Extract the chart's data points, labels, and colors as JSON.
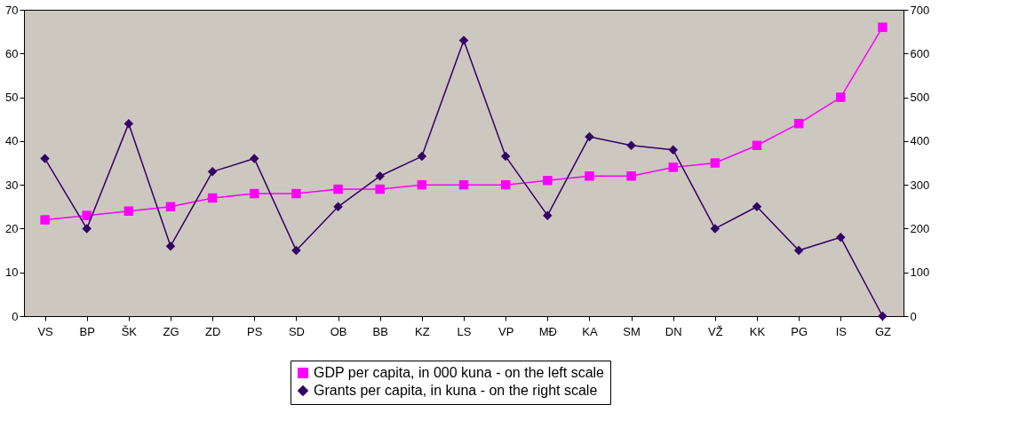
{
  "chart_data": {
    "type": "line",
    "categories": [
      "VS",
      "BP",
      "ŠK",
      "ZG",
      "ZD",
      "PS",
      "SD",
      "OB",
      "BB",
      "KZ",
      "LS",
      "VP",
      "MĐ",
      "KA",
      "SM",
      "DN",
      "VŽ",
      "KK",
      "PG",
      "IS",
      "GZ"
    ],
    "series": [
      {
        "name": "GDP per capita, in 000 kuna - on the left scale",
        "color": "#ff00ff",
        "marker": "square",
        "values": [
          22,
          23,
          24,
          25,
          27,
          28,
          28,
          29,
          29,
          30,
          30,
          30,
          31,
          32,
          32,
          34,
          35,
          39,
          44,
          50,
          66
        ]
      },
      {
        "name": "Grants per capita, in kuna - on the right scale",
        "color": "#330066",
        "marker": "diamond",
        "axis": "y2",
        "values": [
          360,
          200,
          440,
          160,
          330,
          360,
          150,
          250,
          320,
          365,
          630,
          365,
          230,
          410,
          390,
          380,
          200,
          250,
          150,
          180,
          0
        ]
      }
    ],
    "ylim": [
      0,
      70
    ],
    "yticks": [
      0,
      10,
      20,
      30,
      40,
      50,
      60,
      70
    ],
    "y2lim": [
      0,
      700
    ],
    "y2ticks": [
      0,
      100,
      200,
      300,
      400,
      500,
      600,
      700
    ],
    "legend": "bottom",
    "line_style": "solid"
  }
}
